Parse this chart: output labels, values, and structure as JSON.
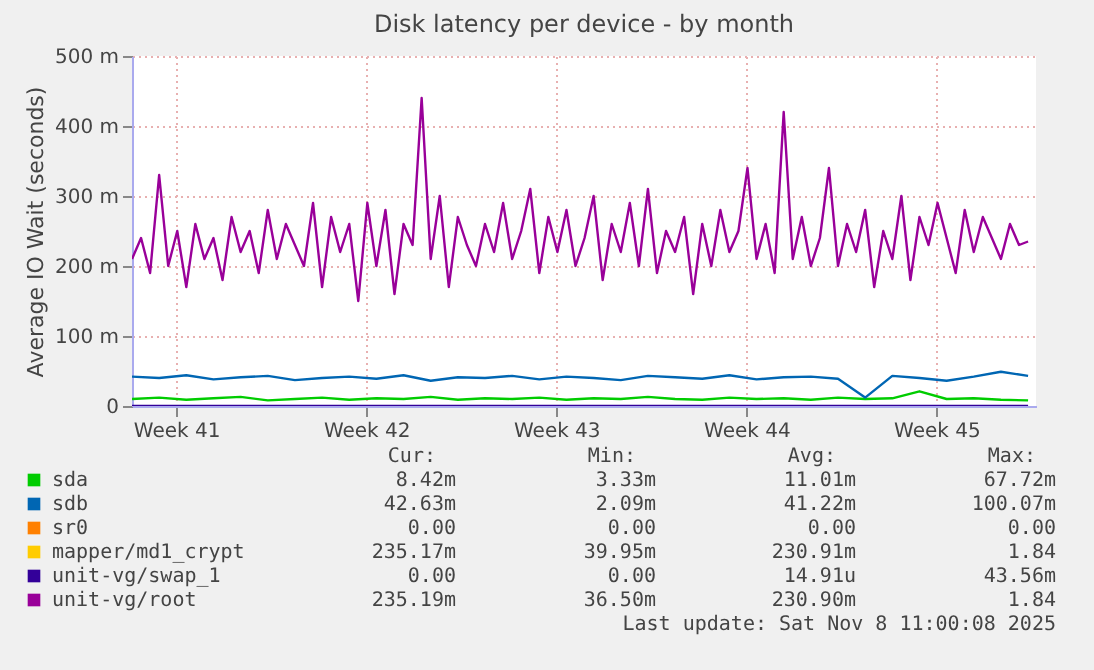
{
  "chart_data": {
    "type": "line",
    "title": "Disk latency per device - by month",
    "ylabel": "Average IO Wait (seconds)",
    "xlim": [
      "2025-10-06T04:00",
      "2025-11-08T11:00"
    ],
    "xticks": [
      {
        "value": "2025-10-07T19:00",
        "label": "Week 41"
      },
      {
        "value": "2025-10-14T19:00",
        "label": "Week 42"
      },
      {
        "value": "2025-10-21T19:00",
        "label": "Week 43"
      },
      {
        "value": "2025-10-28T19:00",
        "label": "Week 44"
      },
      {
        "value": "2025-11-04T19:00",
        "label": "Week 45"
      }
    ],
    "ylim": [
      0,
      500
    ],
    "yticks": [
      0,
      {
        "value": 100,
        "label": "100 m"
      },
      {
        "value": 200,
        "label": "200 m"
      },
      {
        "value": 300,
        "label": "300 m"
      },
      {
        "value": 400,
        "label": "400 m"
      },
      {
        "value": 500,
        "label": "500 m"
      }
    ],
    "grid": true,
    "legend": "bottom",
    "line_style": "solid",
    "marker": "none",
    "x": [
      "2025-10-06T04:00",
      "2025-10-06T12:00",
      "2025-10-06T20:00",
      "2025-10-07T04:00",
      "2025-10-07T12:00",
      "2025-10-07T20:00",
      "2025-10-08T04:00",
      "2025-10-08T12:00",
      "2025-10-08T20:00",
      "2025-10-09T04:00",
      "2025-10-09T12:00",
      "2025-10-09T20:00",
      "2025-10-10T04:00",
      "2025-10-10T12:00",
      "2025-10-10T20:00",
      "2025-10-11T04:00",
      "2025-10-11T12:00",
      "2025-10-11T20:00",
      "2025-10-12T04:00",
      "2025-10-12T12:00",
      "2025-10-12T20:00",
      "2025-10-13T04:00",
      "2025-10-13T12:00",
      "2025-10-13T20:00",
      "2025-10-14T04:00",
      "2025-10-14T12:00",
      "2025-10-14T20:00",
      "2025-10-15T04:00",
      "2025-10-15T12:00",
      "2025-10-15T20:00",
      "2025-10-16T04:00",
      "2025-10-16T12:00",
      "2025-10-16T20:00",
      "2025-10-17T04:00",
      "2025-10-17T12:00",
      "2025-10-17T20:00",
      "2025-10-18T04:00",
      "2025-10-18T12:00",
      "2025-10-18T20:00",
      "2025-10-19T04:00",
      "2025-10-19T12:00",
      "2025-10-19T20:00",
      "2025-10-20T04:00",
      "2025-10-20T12:00",
      "2025-10-20T20:00",
      "2025-10-21T04:00",
      "2025-10-21T12:00",
      "2025-10-21T20:00",
      "2025-10-22T04:00",
      "2025-10-22T12:00",
      "2025-10-22T20:00",
      "2025-10-23T04:00",
      "2025-10-23T12:00",
      "2025-10-23T20:00",
      "2025-10-24T04:00",
      "2025-10-24T12:00",
      "2025-10-24T20:00",
      "2025-10-25T04:00",
      "2025-10-25T12:00",
      "2025-10-25T20:00",
      "2025-10-26T04:00",
      "2025-10-26T12:00",
      "2025-10-26T20:00",
      "2025-10-27T04:00",
      "2025-10-27T12:00",
      "2025-10-27T20:00",
      "2025-10-28T04:00",
      "2025-10-28T12:00",
      "2025-10-28T20:00",
      "2025-10-29T04:00",
      "2025-10-29T12:00",
      "2025-10-29T20:00",
      "2025-10-30T04:00",
      "2025-10-30T12:00",
      "2025-10-30T20:00",
      "2025-10-31T04:00",
      "2025-10-31T12:00",
      "2025-10-31T20:00",
      "2025-11-01T04:00",
      "2025-11-01T12:00",
      "2025-11-01T20:00",
      "2025-11-02T04:00",
      "2025-11-02T12:00",
      "2025-11-02T20:00",
      "2025-11-03T04:00",
      "2025-11-03T12:00",
      "2025-11-03T20:00",
      "2025-11-04T04:00",
      "2025-11-04T12:00",
      "2025-11-04T20:00",
      "2025-11-05T04:00",
      "2025-11-05T12:00",
      "2025-11-05T20:00",
      "2025-11-06T04:00",
      "2025-11-06T12:00",
      "2025-11-06T20:00",
      "2025-11-07T04:00",
      "2025-11-07T12:00",
      "2025-11-07T20:00",
      "2025-11-08T04:00"
    ],
    "series": [
      {
        "name": "sda",
        "color": "#00cc00",
        "x": [
          "2025-10-06T04:00",
          "2025-10-07T04:00",
          "2025-10-08T04:00",
          "2025-10-09T04:00",
          "2025-10-10T04:00",
          "2025-10-11T04:00",
          "2025-10-12T04:00",
          "2025-10-13T04:00",
          "2025-10-14T04:00",
          "2025-10-15T04:00",
          "2025-10-16T04:00",
          "2025-10-17T04:00",
          "2025-10-18T04:00",
          "2025-10-19T04:00",
          "2025-10-20T04:00",
          "2025-10-21T04:00",
          "2025-10-22T04:00",
          "2025-10-23T04:00",
          "2025-10-24T04:00",
          "2025-10-25T04:00",
          "2025-10-26T04:00",
          "2025-10-27T04:00",
          "2025-10-28T04:00",
          "2025-10-29T04:00",
          "2025-10-30T04:00",
          "2025-10-31T04:00",
          "2025-11-01T04:00",
          "2025-11-02T04:00",
          "2025-11-03T04:00",
          "2025-11-04T04:00",
          "2025-11-05T04:00",
          "2025-11-06T04:00",
          "2025-11-07T04:00",
          "2025-11-08T04:00"
        ],
        "values": [
          10,
          12,
          9,
          11,
          13,
          8,
          10,
          12,
          9,
          11,
          10,
          13,
          9,
          11,
          10,
          12,
          9,
          11,
          10,
          13,
          10,
          9,
          12,
          10,
          11,
          9,
          12,
          10,
          11,
          21,
          10,
          11,
          9,
          8
        ]
      },
      {
        "name": "sdb",
        "color": "#0066b3",
        "x": [
          "2025-10-06T04:00",
          "2025-10-07T04:00",
          "2025-10-08T04:00",
          "2025-10-09T04:00",
          "2025-10-10T04:00",
          "2025-10-11T04:00",
          "2025-10-12T04:00",
          "2025-10-13T04:00",
          "2025-10-14T04:00",
          "2025-10-15T04:00",
          "2025-10-16T04:00",
          "2025-10-17T04:00",
          "2025-10-18T04:00",
          "2025-10-19T04:00",
          "2025-10-20T04:00",
          "2025-10-21T04:00",
          "2025-10-22T04:00",
          "2025-10-23T04:00",
          "2025-10-24T04:00",
          "2025-10-25T04:00",
          "2025-10-26T04:00",
          "2025-10-27T04:00",
          "2025-10-28T04:00",
          "2025-10-29T04:00",
          "2025-10-30T04:00",
          "2025-10-31T04:00",
          "2025-11-01T04:00",
          "2025-11-02T04:00",
          "2025-11-03T04:00",
          "2025-11-04T04:00",
          "2025-11-05T04:00",
          "2025-11-06T04:00",
          "2025-11-07T04:00",
          "2025-11-08T04:00"
        ],
        "values": [
          42,
          40,
          44,
          38,
          41,
          43,
          37,
          40,
          42,
          39,
          44,
          36,
          41,
          40,
          43,
          38,
          42,
          40,
          37,
          43,
          41,
          39,
          44,
          38,
          41,
          42,
          39,
          12,
          43,
          40,
          36,
          42,
          49,
          43
        ]
      },
      {
        "name": "sr0",
        "color": "#ff8000",
        "values": [
          null,
          null,
          null,
          null,
          null,
          null,
          null,
          null,
          null,
          null,
          null,
          null,
          null,
          null,
          null,
          null,
          null,
          null,
          null,
          null,
          null,
          null,
          null,
          null,
          null,
          null,
          null,
          null,
          null,
          null,
          null,
          null,
          null,
          null,
          null,
          null,
          null,
          null,
          null,
          null,
          null,
          null,
          null,
          null,
          null,
          null,
          null,
          null,
          null,
          null,
          null,
          null,
          null,
          null,
          null,
          null,
          null,
          null,
          null,
          null,
          null,
          null,
          null,
          null,
          null,
          null,
          null,
          null,
          null,
          null,
          null,
          null,
          null,
          null,
          null,
          null,
          null,
          null,
          null,
          null,
          null,
          null,
          null,
          null,
          null,
          null,
          null,
          null,
          null,
          null,
          null,
          null,
          null,
          null,
          null,
          null,
          null,
          null,
          null,
          null
        ]
      },
      {
        "name": "mapper/md1_crypt",
        "color": "#ffcc00",
        "values": [
          null,
          null,
          null,
          null,
          null,
          null,
          null,
          null,
          null,
          null,
          null,
          null,
          null,
          null,
          null,
          null,
          null,
          null,
          null,
          null,
          null,
          null,
          null,
          null,
          null,
          null,
          null,
          null,
          null,
          null,
          null,
          null,
          null,
          null,
          null,
          null,
          null,
          null,
          null,
          null,
          null,
          null,
          null,
          null,
          null,
          null,
          null,
          null,
          null,
          null,
          null,
          null,
          null,
          null,
          null,
          null,
          null,
          null,
          null,
          null,
          null,
          null,
          null,
          null,
          null,
          null,
          null,
          null,
          null,
          null,
          null,
          null,
          null,
          null,
          null,
          null,
          null,
          null,
          null,
          null,
          null,
          null,
          null,
          null,
          null,
          null,
          null,
          null,
          null,
          null,
          null,
          null,
          null,
          null,
          null,
          null,
          null,
          null,
          null,
          null
        ]
      },
      {
        "name": "unit-vg/swap_1",
        "color": "#330099",
        "x": [
          "2025-10-06T04:00",
          "2025-11-08T04:00"
        ],
        "values": [
          0,
          0
        ]
      },
      {
        "name": "unit-vg/root",
        "color": "#990099",
        "values": [
          210,
          240,
          190,
          330,
          200,
          250,
          170,
          260,
          210,
          240,
          180,
          270,
          220,
          250,
          190,
          280,
          210,
          260,
          230,
          200,
          290,
          170,
          270,
          220,
          260,
          150,
          290,
          200,
          280,
          160,
          260,
          230,
          440,
          210,
          300,
          170,
          270,
          230,
          200,
          260,
          220,
          290,
          210,
          250,
          310,
          190,
          270,
          220,
          280,
          200,
          240,
          300,
          180,
          260,
          220,
          290,
          200,
          310,
          190,
          250,
          220,
          270,
          160,
          260,
          200,
          280,
          220,
          250,
          340,
          210,
          260,
          190,
          420,
          210,
          270,
          200,
          240,
          340,
          200,
          260,
          220,
          280,
          170,
          250,
          210,
          300,
          180,
          270,
          230,
          290,
          240,
          190,
          280,
          220,
          270,
          240,
          210,
          260,
          230,
          235
        ]
      }
    ],
    "annotations": [
      "Cur:",
      "Min:",
      "Avg:",
      "Max:",
      "8.42m",
      "3.33m",
      "11.01m",
      "67.72m",
      "42.63m",
      "2.09m",
      "41.22m",
      "100.07m",
      "0.00",
      "0.00",
      "0.00",
      "0.00",
      "235.17m",
      "39.95m",
      "230.91m",
      "1.84",
      "0.00",
      "0.00",
      "14.91u",
      "43.56m",
      "235.19m",
      "36.50m",
      "230.90m",
      "1.84",
      "Last update: Sat Nov  8 11:00:08 2025"
    ]
  }
}
